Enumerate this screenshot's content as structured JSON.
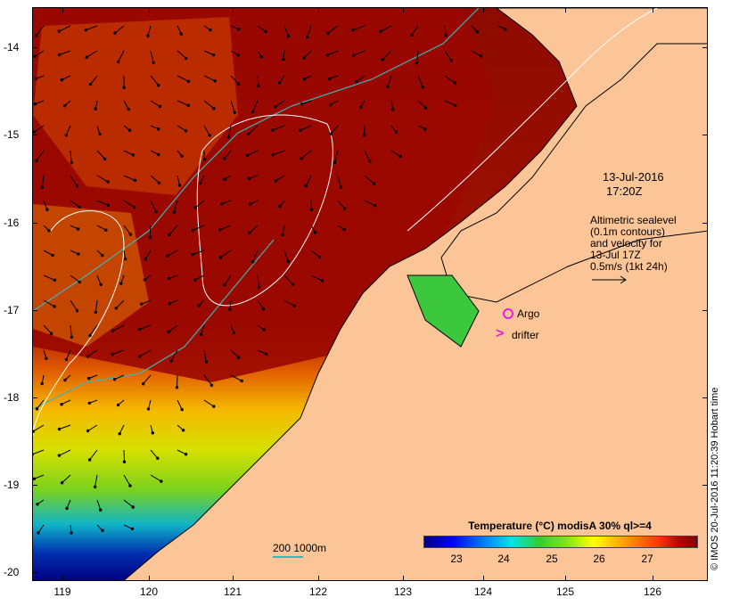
{
  "map": {
    "lat_ticks": [
      "-14",
      "-15",
      "-16",
      "-17",
      "-18",
      "-19",
      "-20"
    ],
    "lon_ticks": [
      "119",
      "120",
      "121",
      "122",
      "123",
      "124",
      "125",
      "126"
    ],
    "timestamp_date": "13-Jul-2016",
    "timestamp_time": "17:20Z",
    "altimetry_lines": [
      "Altimetric sealevel",
      "(0.1m contours)",
      "and velocity for",
      "13-Jul 17Z",
      "0.5m/s (1kt 24h)"
    ],
    "argo_label": "Argo",
    "drifter_label": "drifter",
    "drifter_symbol": ">",
    "scale_label": "200  1000m",
    "colorbar_title": "Temperature (°C) modisA 30% ql>=4",
    "colorbar_ticks": [
      "23",
      "24",
      "25",
      "26",
      "27"
    ],
    "credit": "© IMOS 20-Jul-2016 11:20:39 Hobart time",
    "colors": {
      "land": "#fbc598",
      "warm_sst": "#9b0a00",
      "cool_sst": "#00008b",
      "contour": "#40b4b4",
      "sealevel_contour": "#ffffff",
      "marker": "#e020e0"
    }
  }
}
